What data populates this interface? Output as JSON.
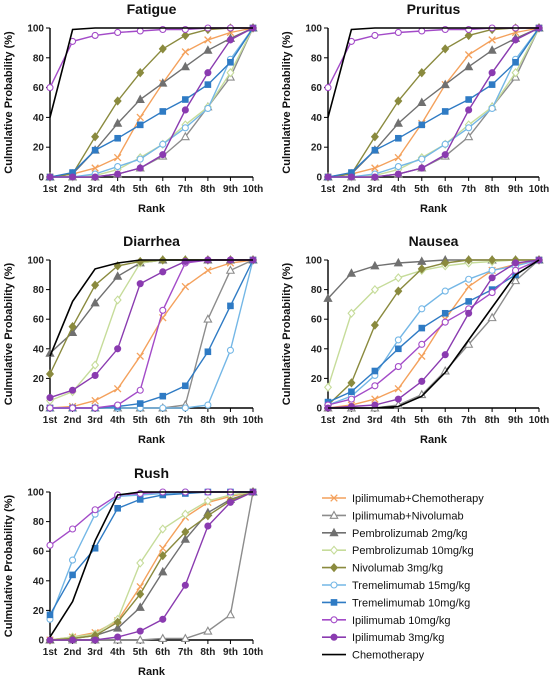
{
  "series_meta": [
    {
      "name": "Ipilimumab+Chemotherapy",
      "color": "#F4A15C",
      "marker": "x"
    },
    {
      "name": "Ipilimumab+Nivolumab",
      "color": "#8C8C8C",
      "marker": "triangle-open"
    },
    {
      "name": "Pembrolizumab 2mg/kg",
      "color": "#707070",
      "marker": "triangle"
    },
    {
      "name": "Pembrolizumab 10mg/kg",
      "color": "#C6DC9A",
      "marker": "diamond-open"
    },
    {
      "name": "Nivolumab 3mg/kg",
      "color": "#8A8A3E",
      "marker": "diamond"
    },
    {
      "name": "Tremelimumab 15mg/kg",
      "color": "#74B7E6",
      "marker": "circle-open"
    },
    {
      "name": "Tremelimumab 10mg/kg",
      "color": "#2F7BC4",
      "marker": "square"
    },
    {
      "name": "Ipilimumab 10mg/kg",
      "color": "#A34BC8",
      "marker": "circle-open"
    },
    {
      "name": "Ipilimumab 3mg/kg",
      "color": "#8A3BB0",
      "marker": "circle"
    },
    {
      "name": "Chemotherapy",
      "color": "#000000",
      "marker": "none"
    }
  ],
  "chart_data": [
    {
      "type": "line",
      "title": "Fatigue",
      "xlabel": "Rank",
      "ylabel": "Culmulative Probability (%)",
      "categories": [
        "1st",
        "2nd",
        "3rd",
        "4th",
        "5th",
        "6th",
        "7th",
        "8th",
        "9th",
        "10th"
      ],
      "ylim": [
        0,
        100
      ],
      "yticks": [
        0,
        20,
        40,
        60,
        80,
        100
      ],
      "series": [
        {
          "name": "Ipilimumab+Chemotherapy",
          "values": [
            0,
            2,
            6,
            13,
            40,
            63,
            84,
            92,
            97,
            100
          ]
        },
        {
          "name": "Ipilimumab+Nivolumab",
          "values": [
            0,
            0,
            0,
            2,
            6,
            14,
            27,
            47,
            67,
            100
          ]
        },
        {
          "name": "Pembrolizumab 2mg/kg",
          "values": [
            0,
            2,
            18,
            36,
            52,
            63,
            74,
            85,
            93,
            100
          ]
        },
        {
          "name": "Pembrolizumab 10mg/kg",
          "values": [
            0,
            0,
            1,
            5,
            13,
            22,
            35,
            47,
            70,
            100
          ]
        },
        {
          "name": "Nivolumab 3mg/kg",
          "values": [
            0,
            2,
            27,
            51,
            70,
            86,
            95,
            99,
            100,
            100
          ]
        },
        {
          "name": "Tremelimumab 15mg/kg",
          "values": [
            0,
            0,
            2,
            7,
            12,
            22,
            33,
            46,
            79,
            100
          ]
        },
        {
          "name": "Tremelimumab 10mg/kg",
          "values": [
            0,
            3,
            18,
            26,
            35,
            44,
            52,
            62,
            77,
            100
          ]
        },
        {
          "name": "Ipilimumab 10mg/kg",
          "values": [
            60,
            91,
            95,
            97,
            98,
            99,
            99,
            100,
            100,
            100
          ]
        },
        {
          "name": "Ipilimumab 3mg/kg",
          "values": [
            0,
            0,
            0,
            2,
            6,
            15,
            45,
            70,
            92,
            100
          ]
        },
        {
          "name": "Chemotherapy",
          "values": [
            40,
            99,
            100,
            100,
            100,
            100,
            100,
            100,
            100,
            100
          ]
        }
      ]
    },
    {
      "type": "line",
      "title": "Pruritus",
      "xlabel": "Rank",
      "ylabel": "Culmulative Probability (%)",
      "categories": [
        "1st",
        "2nd",
        "3rd",
        "4th",
        "5th",
        "6th",
        "7th",
        "8th",
        "9th",
        "10th"
      ],
      "ylim": [
        0,
        100
      ],
      "yticks": [
        0,
        20,
        40,
        60,
        80,
        100
      ],
      "series": [
        {
          "name": "Ipilimumab+Chemotherapy",
          "values": [
            0,
            2,
            6,
            13,
            36,
            62,
            82,
            92,
            97,
            100
          ]
        },
        {
          "name": "Ipilimumab+Nivolumab",
          "values": [
            0,
            0,
            0,
            2,
            6,
            14,
            27,
            47,
            67,
            100
          ]
        },
        {
          "name": "Pembrolizumab 2mg/kg",
          "values": [
            0,
            2,
            18,
            36,
            50,
            62,
            74,
            85,
            93,
            100
          ]
        },
        {
          "name": "Pembrolizumab 10mg/kg",
          "values": [
            0,
            0,
            1,
            5,
            13,
            22,
            35,
            47,
            70,
            100
          ]
        },
        {
          "name": "Nivolumab 3mg/kg",
          "values": [
            0,
            2,
            27,
            51,
            70,
            86,
            95,
            99,
            100,
            100
          ]
        },
        {
          "name": "Tremelimumab 15mg/kg",
          "values": [
            0,
            0,
            2,
            7,
            12,
            22,
            33,
            46,
            79,
            100
          ]
        },
        {
          "name": "Tremelimumab 10mg/kg",
          "values": [
            0,
            3,
            18,
            26,
            35,
            44,
            52,
            62,
            77,
            100
          ]
        },
        {
          "name": "Ipilimumab 10mg/kg",
          "values": [
            60,
            91,
            95,
            97,
            98,
            99,
            99,
            100,
            100,
            100
          ]
        },
        {
          "name": "Ipilimumab 3mg/kg",
          "values": [
            0,
            0,
            0,
            2,
            6,
            15,
            45,
            70,
            92,
            100
          ]
        },
        {
          "name": "Chemotherapy",
          "values": [
            40,
            99,
            100,
            100,
            100,
            100,
            100,
            100,
            100,
            100
          ]
        }
      ]
    },
    {
      "type": "line",
      "title": "Diarrhea",
      "xlabel": "Rank",
      "ylabel": "Culmulative Probability (%)",
      "categories": [
        "1st",
        "2nd",
        "3rd",
        "4th",
        "5th",
        "6th",
        "7th",
        "8th",
        "9th",
        "10th"
      ],
      "ylim": [
        0,
        100
      ],
      "yticks": [
        0,
        20,
        40,
        60,
        80,
        100
      ],
      "series": [
        {
          "name": "Ipilimumab+Chemotherapy",
          "values": [
            0,
            1,
            5,
            13,
            35,
            61,
            82,
            93,
            98,
            100
          ]
        },
        {
          "name": "Ipilimumab+Nivolumab",
          "values": [
            0,
            0,
            0,
            0,
            0,
            0,
            2,
            60,
            93,
            100
          ]
        },
        {
          "name": "Pembrolizumab 2mg/kg",
          "values": [
            37,
            51,
            71,
            89,
            98,
            100,
            100,
            100,
            100,
            100
          ]
        },
        {
          "name": "Pembrolizumab 10mg/kg",
          "values": [
            5,
            11,
            29,
            73,
            98,
            100,
            100,
            100,
            100,
            100
          ]
        },
        {
          "name": "Nivolumab 3mg/kg",
          "values": [
            23,
            55,
            83,
            96,
            99,
            100,
            100,
            100,
            100,
            100
          ]
        },
        {
          "name": "Tremelimumab 15mg/kg",
          "values": [
            0,
            0,
            0,
            0,
            0,
            0,
            0,
            2,
            39,
            100
          ]
        },
        {
          "name": "Tremelimumab 10mg/kg",
          "values": [
            0,
            0,
            0,
            1,
            3,
            8,
            15,
            38,
            69,
            100
          ]
        },
        {
          "name": "Ipilimumab 10mg/kg",
          "values": [
            0,
            0,
            0,
            2,
            12,
            66,
            98,
            100,
            100,
            100
          ]
        },
        {
          "name": "Ipilimumab 3mg/kg",
          "values": [
            7,
            12,
            22,
            40,
            84,
            92,
            99,
            100,
            100,
            100
          ]
        },
        {
          "name": "Chemotherapy",
          "values": [
            35,
            72,
            94,
            98,
            100,
            100,
            100,
            100,
            100,
            100
          ]
        }
      ]
    },
    {
      "type": "line",
      "title": "Nausea",
      "xlabel": "Rank",
      "ylabel": "Culmulative Probability (%)",
      "categories": [
        "1st",
        "2nd",
        "3rd",
        "4th",
        "5th",
        "6th",
        "7th",
        "8th",
        "9th",
        "10th"
      ],
      "ylim": [
        0,
        100
      ],
      "yticks": [
        0,
        20,
        40,
        60,
        80,
        100
      ],
      "series": [
        {
          "name": "Ipilimumab+Chemotherapy",
          "values": [
            0,
            2,
            6,
            13,
            35,
            60,
            82,
            93,
            97,
            100
          ]
        },
        {
          "name": "Ipilimumab+Nivolumab",
          "values": [
            0,
            0,
            0,
            2,
            9,
            25,
            43,
            61,
            86,
            100
          ]
        },
        {
          "name": "Pembrolizumab 2mg/kg",
          "values": [
            74,
            91,
            96,
            98,
            99,
            100,
            100,
            100,
            100,
            100
          ]
        },
        {
          "name": "Pembrolizumab 10mg/kg",
          "values": [
            14,
            64,
            80,
            88,
            93,
            96,
            98,
            99,
            100,
            100
          ]
        },
        {
          "name": "Nivolumab 3mg/kg",
          "values": [
            2,
            17,
            56,
            79,
            94,
            98,
            100,
            100,
            100,
            100
          ]
        },
        {
          "name": "Tremelimumab 15mg/kg",
          "values": [
            2,
            8,
            22,
            46,
            67,
            79,
            87,
            93,
            96,
            100
          ]
        },
        {
          "name": "Tremelimumab 10mg/kg",
          "values": [
            4,
            11,
            25,
            40,
            54,
            64,
            72,
            80,
            90,
            100
          ]
        },
        {
          "name": "Ipilimumab 10mg/kg",
          "values": [
            2,
            6,
            15,
            28,
            43,
            58,
            67,
            78,
            93,
            100
          ]
        },
        {
          "name": "Ipilimumab 3mg/kg",
          "values": [
            0,
            1,
            2,
            6,
            18,
            36,
            64,
            88,
            98,
            100
          ]
        },
        {
          "name": "Chemotherapy",
          "values": [
            0,
            0,
            0,
            1,
            8,
            24,
            46,
            68,
            90,
            100
          ]
        }
      ]
    },
    {
      "type": "line",
      "title": "Rush",
      "xlabel": "Rank",
      "ylabel": "Culmulative Probability (%)",
      "categories": [
        "1st",
        "2nd",
        "3rd",
        "4th",
        "5th",
        "6th",
        "7th",
        "8th",
        "9th",
        "10th"
      ],
      "ylim": [
        0,
        100
      ],
      "yticks": [
        0,
        20,
        40,
        60,
        80,
        100
      ],
      "series": [
        {
          "name": "Ipilimumab+Chemotherapy",
          "values": [
            0,
            2,
            5,
            13,
            36,
            62,
            83,
            93,
            97,
            100
          ]
        },
        {
          "name": "Ipilimumab+Nivolumab",
          "values": [
            0,
            0,
            0,
            0,
            0,
            1,
            1,
            6,
            17,
            100
          ]
        },
        {
          "name": "Pembrolizumab 2mg/kg",
          "values": [
            0,
            1,
            3,
            8,
            22,
            46,
            68,
            86,
            95,
            100
          ]
        },
        {
          "name": "Pembrolizumab 10mg/kg",
          "values": [
            0,
            2,
            4,
            14,
            52,
            75,
            85,
            94,
            98,
            100
          ]
        },
        {
          "name": "Nivolumab 3mg/kg",
          "values": [
            0,
            1,
            3,
            12,
            31,
            57,
            73,
            84,
            94,
            100
          ]
        },
        {
          "name": "Tremelimumab 15mg/kg",
          "values": [
            14,
            54,
            85,
            97,
            98,
            99,
            100,
            100,
            100,
            100
          ]
        },
        {
          "name": "Tremelimumab 10mg/kg",
          "values": [
            17,
            44,
            62,
            89,
            95,
            98,
            99,
            100,
            100,
            100
          ]
        },
        {
          "name": "Ipilimumab 10mg/kg",
          "values": [
            64,
            75,
            88,
            98,
            99,
            100,
            100,
            100,
            100,
            100
          ]
        },
        {
          "name": "Ipilimumab 3mg/kg",
          "values": [
            0,
            0,
            0,
            2,
            6,
            14,
            37,
            77,
            93,
            100
          ]
        },
        {
          "name": "Chemotherapy",
          "values": [
            2,
            26,
            67,
            98,
            100,
            100,
            100,
            100,
            100,
            100
          ]
        }
      ]
    }
  ]
}
